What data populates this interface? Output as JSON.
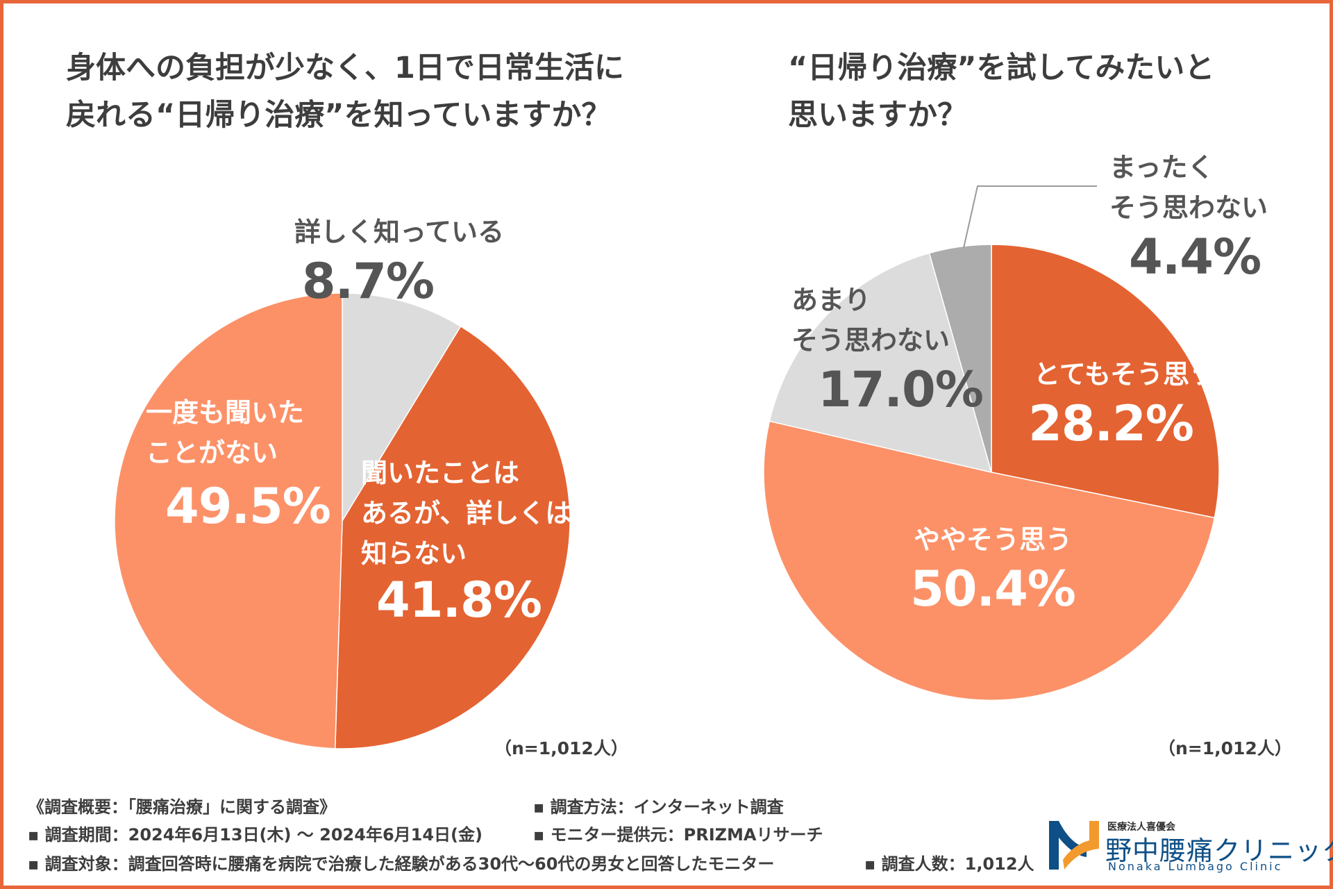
{
  "chart_data": [
    {
      "type": "pie",
      "title": "身体への負担が少なく、1日で日常生活に\n戻れる“日帰り治療”を知っていますか？",
      "title_lines": [
        "身体への負担が少なく、1日で日常生活に",
        "戻れる“日帰り治療”を知っていますか？"
      ],
      "slices": [
        {
          "label": "詳しく知っている",
          "value": 8.7,
          "value_label": "8.7%",
          "color": "#dcdcdc"
        },
        {
          "label": "聞いたことはあるが、詳しくは知らない",
          "label_lines": [
            "聞いたことは",
            "あるが、詳しくは",
            "知らない"
          ],
          "value": 41.8,
          "value_label": "41.8%",
          "color": "#e46332"
        },
        {
          "label": "一度も聞いたことがない",
          "label_lines": [
            "一度も聞いた",
            "ことがない"
          ],
          "value": 49.5,
          "value_label": "49.5%",
          "color": "#fc9168"
        }
      ],
      "note": "（n=1,012人）"
    },
    {
      "type": "pie",
      "title": "“日帰り治療”を試してみたいと\n思いますか？",
      "title_lines": [
        "“日帰り治療”を試してみたいと",
        "思いますか？"
      ],
      "slices": [
        {
          "label": "とてもそう思う",
          "value": 28.2,
          "value_label": "28.2%",
          "color": "#e46332"
        },
        {
          "label": "ややそう思う",
          "value": 50.4,
          "value_label": "50.4%",
          "color": "#fc9168"
        },
        {
          "label": "あまりそう思わない",
          "label_lines": [
            "あまり",
            "そう思わない"
          ],
          "value": 17.0,
          "value_label": "17.0%",
          "color": "#dcdcdc"
        },
        {
          "label": "まったくそう思わない",
          "label_lines": [
            "まったく",
            "そう思わない"
          ],
          "value": 4.4,
          "value_label": "4.4%",
          "color": "#acacac"
        }
      ],
      "note": "（n=1,012人）"
    }
  ],
  "footer": {
    "summary": "《調査概要：「腰痛治療」に関する調査》",
    "period": "▪ 調査期間：2024年6月13日(木) ～ 2024年6月14日(金)",
    "target": "▪ 調査対象：調査回答時に腰痛を病院で治療した経験がある30代～60代の男女と回答したモニター",
    "method": "▪ 調査方法：インターネット調査",
    "provider": "▪ モニター提供元：PRIZMAリサーチ",
    "count": "▪ 調査人数：1,012人"
  },
  "logo": {
    "sub": "医療法人喜優会",
    "name": "野中腰痛クリニック",
    "english": "Nonaka Lumbago Clinic"
  },
  "colors": {
    "border": "#e8673a",
    "dark_orange": "#e46332",
    "light_orange": "#fc9168",
    "light_gray": "#dcdcdc",
    "mid_gray": "#acacac",
    "logo_blue": "#0d4f86",
    "logo_orange": "#f29a2e"
  }
}
